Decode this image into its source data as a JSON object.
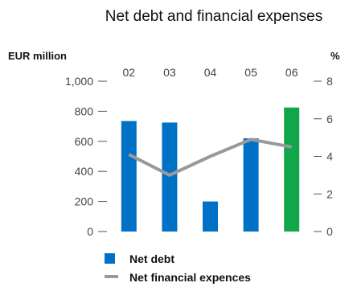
{
  "chart_data": {
    "type": "bar",
    "title": "Net debt and financial expenses",
    "left_axis_label": "EUR million",
    "right_axis_label": "%",
    "categories": [
      "02",
      "03",
      "04",
      "05",
      "06"
    ],
    "y_left": {
      "min": 0,
      "max": 1000,
      "ticks": [
        0,
        200,
        400,
        600,
        800,
        1000
      ],
      "tick_labels": [
        "0",
        "200",
        "400",
        "600",
        "800",
        "1,000"
      ]
    },
    "y_right": {
      "min": 0,
      "max": 8,
      "ticks": [
        0,
        2,
        4,
        6,
        8
      ],
      "tick_labels": [
        "0",
        "2",
        "4",
        "6",
        "8"
      ]
    },
    "series": [
      {
        "name": "Net debt",
        "type": "bar",
        "axis": "left",
        "values": [
          735,
          725,
          200,
          620,
          825
        ],
        "color": "#0072c6",
        "highlight_color": "#12a64a",
        "highlight_index": 4
      },
      {
        "name": "Net financial expences",
        "type": "line",
        "axis": "right",
        "values": [
          4.1,
          3.0,
          4.0,
          4.9,
          4.5
        ],
        "color": "#999999"
      }
    ],
    "legend_position": "bottom-left",
    "grid": false
  }
}
